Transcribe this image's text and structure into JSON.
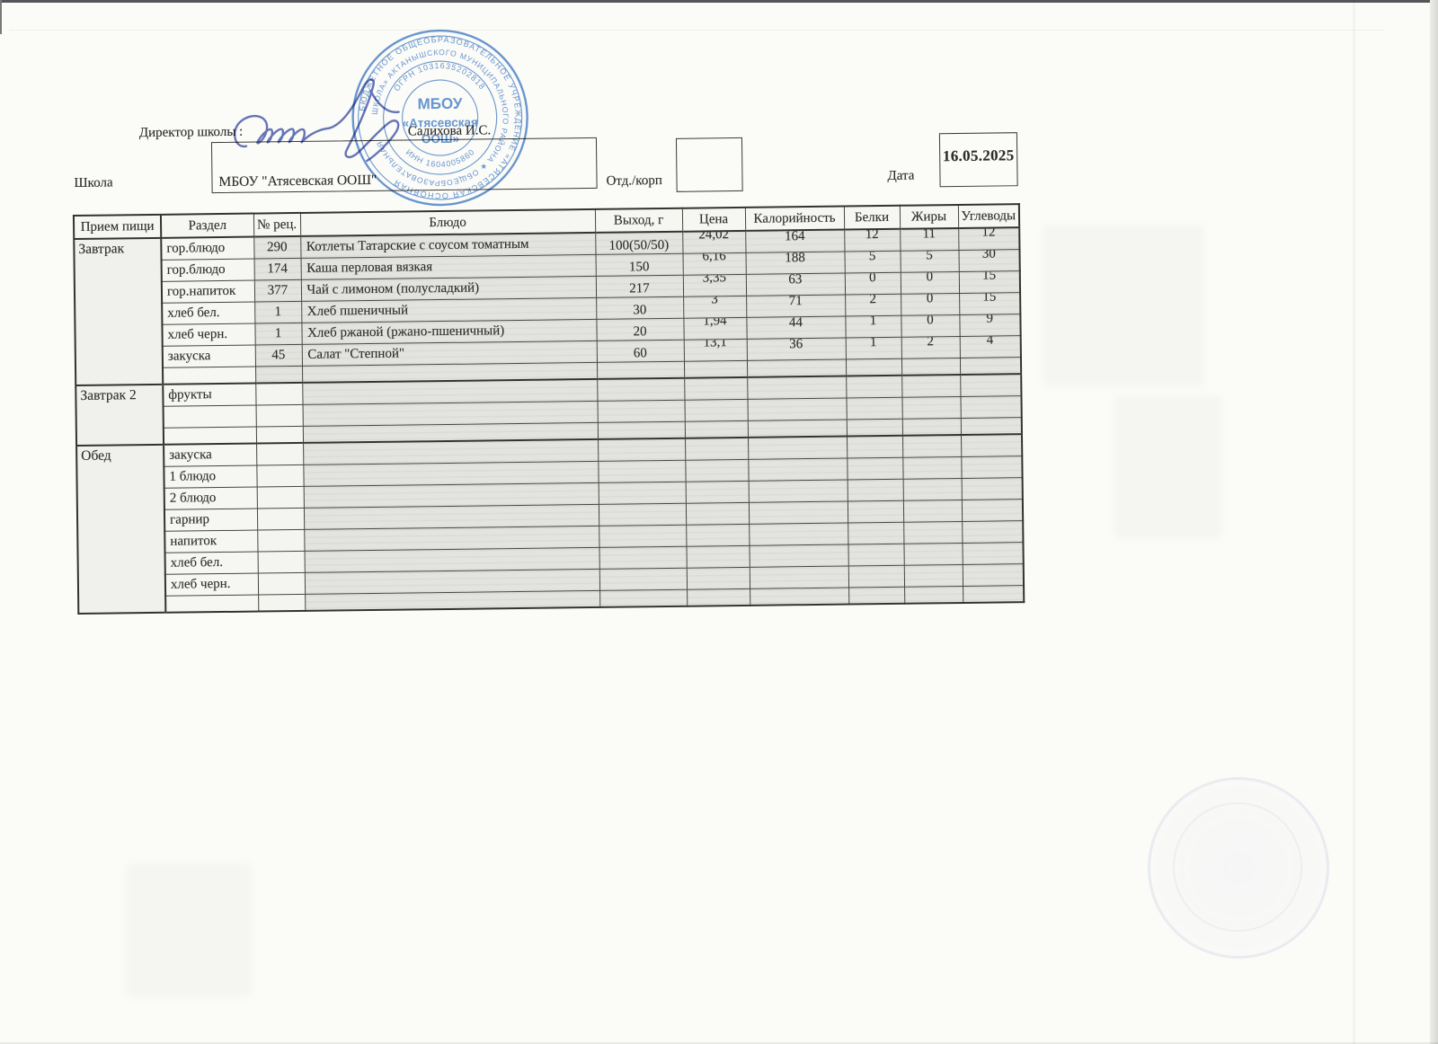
{
  "page": {
    "director_label": "Директор школы :",
    "director_name": "Салихова И.С.",
    "school_label": "Школа",
    "school_name": "МБОУ \"Атясевская ООШ\"",
    "dept_label": "Отд./корп",
    "date_label": "Дата",
    "date_value": "16.05.2025"
  },
  "stamp": {
    "ring_outer": "БЮДЖЕТНОЕ ОБЩЕОБРАЗОВАТЕЛЬНОЕ УЧРЕЖДЕНИЕ «АТЯСЕВСКАЯ ОСНОВНАЯ",
    "ring_middle": "ШКОЛА» АКТАНЫШСКОГО МУНИЦИПАЛЬНОГО РАЙОНА ★ ОБЩЕОБРАЗОВАТЕЛЬНАЯ",
    "ogrn": "ОГРН 1031635202818",
    "inn": "ИНН 1604005860",
    "center_line1": "МБОУ",
    "center_line2": "«Атясевская",
    "center_line3": "ООШ»",
    "color": "#4d83c6"
  },
  "table": {
    "headers": [
      "Прием пищи",
      "Раздел",
      "№ рец.",
      "Блюдо",
      "Выход, г",
      "Цена",
      "Калорийность",
      "Белки",
      "Жиры",
      "Углеводы"
    ],
    "sections": [
      {
        "meal": "Завтрак",
        "rows": [
          {
            "razdel": "гор.блюдо",
            "num": "290",
            "dish": "Котлеты Татарские с соусом томатным",
            "out": "100(50/50)",
            "price": "24,02",
            "kcal": "164",
            "protein": "12",
            "fat": "11",
            "carbs": "12"
          },
          {
            "razdel": "гор.блюдо",
            "num": "174",
            "dish": "Каша перловая вязкая",
            "out": "150",
            "price": "6,16",
            "kcal": "188",
            "protein": "5",
            "fat": "5",
            "carbs": "30"
          },
          {
            "razdel": "гор.напиток",
            "num": "377",
            "dish": "Чай с лимоном (полусладкий)",
            "out": "217",
            "price": "3,35",
            "kcal": "63",
            "protein": "0",
            "fat": "0",
            "carbs": "15"
          },
          {
            "razdel": "хлеб бел.",
            "num": "1",
            "dish": "Хлеб пшеничный",
            "out": "30",
            "price": "3",
            "kcal": "71",
            "protein": "2",
            "fat": "0",
            "carbs": "15"
          },
          {
            "razdel": "хлеб черн.",
            "num": "1",
            "dish": "Хлеб ржаной (ржано-пшеничный)",
            "out": "20",
            "price": "1,94",
            "kcal": "44",
            "protein": "1",
            "fat": "0",
            "carbs": "9"
          },
          {
            "razdel": "закуска",
            "num": "45",
            "dish": "Салат \"Степной\"",
            "out": "60",
            "price": "13,1",
            "kcal": "36",
            "protein": "1",
            "fat": "2",
            "carbs": "4"
          },
          {
            "razdel": "",
            "num": "",
            "dish": "",
            "out": "",
            "price": "",
            "kcal": "",
            "protein": "",
            "fat": "",
            "carbs": ""
          }
        ]
      },
      {
        "meal": "Завтрак 2",
        "rows": [
          {
            "razdel": "фрукты",
            "num": "",
            "dish": "",
            "out": "",
            "price": "",
            "kcal": "",
            "protein": "",
            "fat": "",
            "carbs": ""
          },
          {
            "razdel": "",
            "num": "",
            "dish": "",
            "out": "",
            "price": "",
            "kcal": "",
            "protein": "",
            "fat": "",
            "carbs": ""
          },
          {
            "razdel": "",
            "num": "",
            "dish": "",
            "out": "",
            "price": "",
            "kcal": "",
            "protein": "",
            "fat": "",
            "carbs": ""
          }
        ]
      },
      {
        "meal": "Обед",
        "rows": [
          {
            "razdel": "закуска",
            "num": "",
            "dish": "",
            "out": "",
            "price": "",
            "kcal": "",
            "protein": "",
            "fat": "",
            "carbs": ""
          },
          {
            "razdel": "1 блюдо",
            "num": "",
            "dish": "",
            "out": "",
            "price": "",
            "kcal": "",
            "protein": "",
            "fat": "",
            "carbs": ""
          },
          {
            "razdel": "2 блюдо",
            "num": "",
            "dish": "",
            "out": "",
            "price": "",
            "kcal": "",
            "protein": "",
            "fat": "",
            "carbs": ""
          },
          {
            "razdel": "гарнир",
            "num": "",
            "dish": "",
            "out": "",
            "price": "",
            "kcal": "",
            "protein": "",
            "fat": "",
            "carbs": ""
          },
          {
            "razdel": "напиток",
            "num": "",
            "dish": "",
            "out": "",
            "price": "",
            "kcal": "",
            "protein": "",
            "fat": "",
            "carbs": ""
          },
          {
            "razdel": "хлеб бел.",
            "num": "",
            "dish": "",
            "out": "",
            "price": "",
            "kcal": "",
            "protein": "",
            "fat": "",
            "carbs": ""
          },
          {
            "razdel": "хлеб черн.",
            "num": "",
            "dish": "",
            "out": "",
            "price": "",
            "kcal": "",
            "protein": "",
            "fat": "",
            "carbs": ""
          },
          {
            "razdel": "",
            "num": "",
            "dish": "",
            "out": "",
            "price": "",
            "kcal": "",
            "protein": "",
            "fat": "",
            "carbs": ""
          }
        ]
      }
    ]
  }
}
